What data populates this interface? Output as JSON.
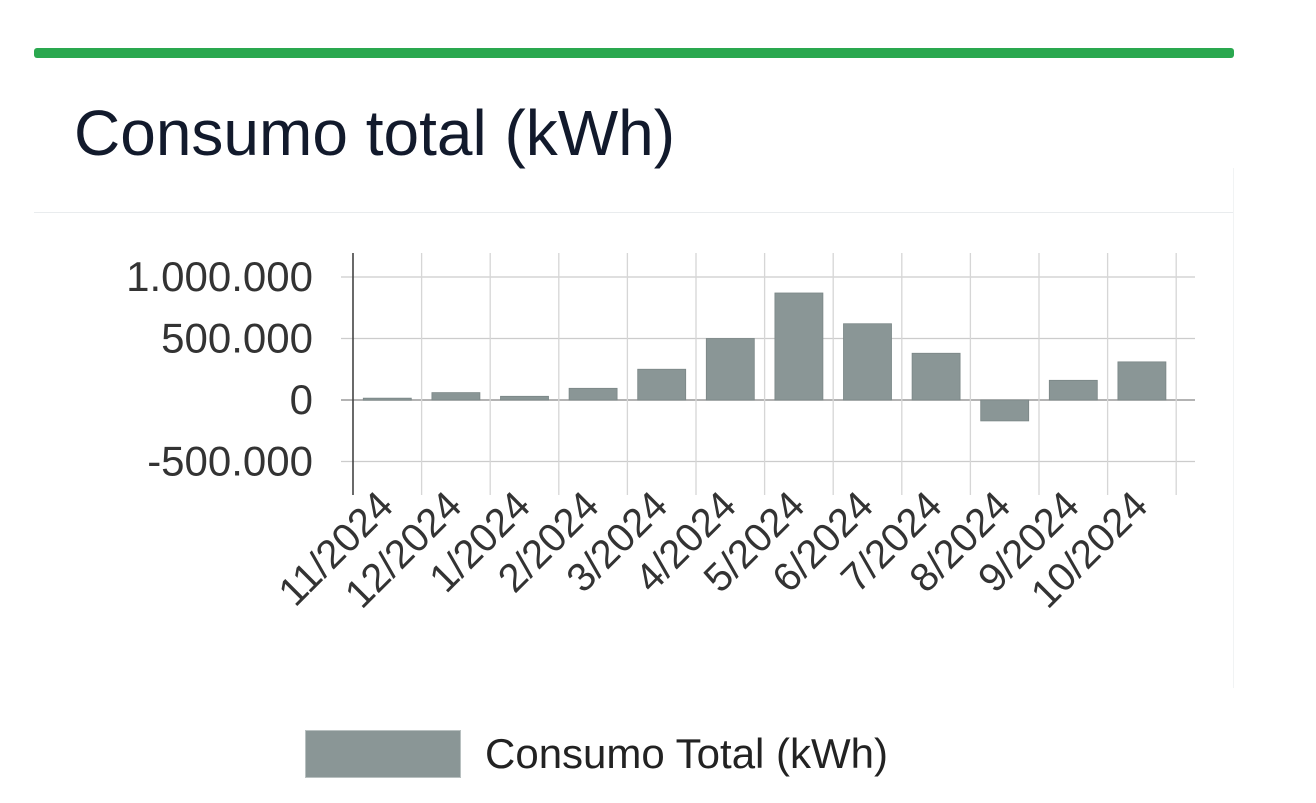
{
  "card": {
    "title": "Consumo total (kWh)",
    "accent_color": "#2aa84f"
  },
  "legend": {
    "label": "Consumo Total (kWh)",
    "swatch_color": "#8a9696"
  },
  "chart_data": {
    "type": "bar",
    "title": "",
    "xlabel": "",
    "ylabel": "",
    "categories": [
      "11/2024",
      "12/2024",
      "1/2024",
      "2/2024",
      "3/2024",
      "4/2024",
      "5/2024",
      "6/2024",
      "7/2024",
      "8/2024",
      "9/2024",
      "10/2024"
    ],
    "series": [
      {
        "name": "Consumo Total (kWh)",
        "color": "#8a9696",
        "values": [
          15000,
          60000,
          30000,
          95000,
          250000,
          500000,
          870000,
          620000,
          380000,
          -170000,
          160000,
          310000
        ]
      }
    ],
    "ylim": [
      -500000,
      1000000
    ],
    "yticks": [
      1000000,
      500000,
      0,
      -500000
    ],
    "ytick_labels": [
      "1.000.000",
      "500.000",
      "0",
      "-500.000"
    ],
    "grid": true,
    "legend_position": "bottom"
  }
}
